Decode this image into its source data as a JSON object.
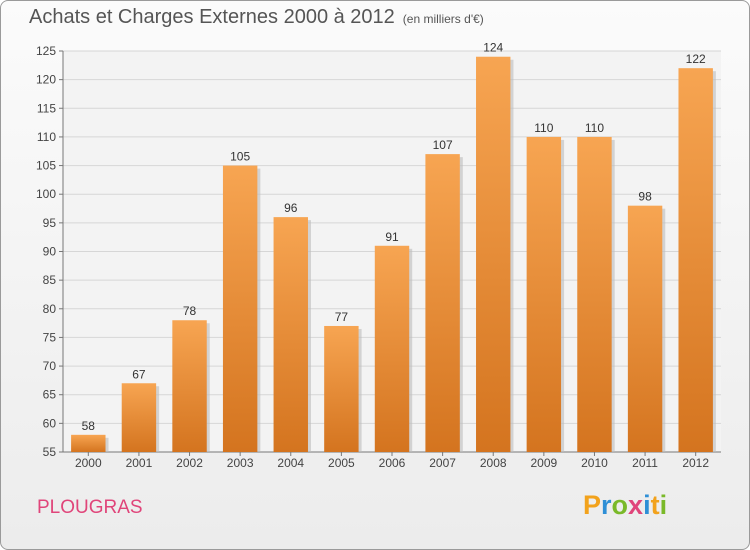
{
  "chart_data": {
    "type": "bar",
    "title": "Achats et Charges Externes 2000 à 2012",
    "unit_label": "(en milliers d'€)",
    "categories": [
      "2000",
      "2001",
      "2002",
      "2003",
      "2004",
      "2005",
      "2006",
      "2007",
      "2008",
      "2009",
      "2010",
      "2011",
      "2012"
    ],
    "values": [
      58,
      67,
      78,
      105,
      96,
      77,
      91,
      107,
      124,
      110,
      110,
      98,
      122
    ],
    "ylim": [
      55,
      125
    ],
    "yticks": [
      55,
      60,
      65,
      70,
      75,
      80,
      85,
      90,
      95,
      100,
      105,
      110,
      115,
      120,
      125
    ],
    "grid": true,
    "bar_color_light": "#f7a552",
    "bar_color_dark": "#d4741f"
  },
  "footer": {
    "commune": "PLOUGRAS"
  },
  "logo": {
    "letters": [
      "P",
      "r",
      "o",
      "x",
      "i",
      "t",
      "i"
    ],
    "colors": [
      "#f2a21c",
      "#2e8fd6",
      "#7ab929",
      "#e0457a",
      "#2e8fd6",
      "#f2a21c",
      "#7ab929"
    ]
  }
}
